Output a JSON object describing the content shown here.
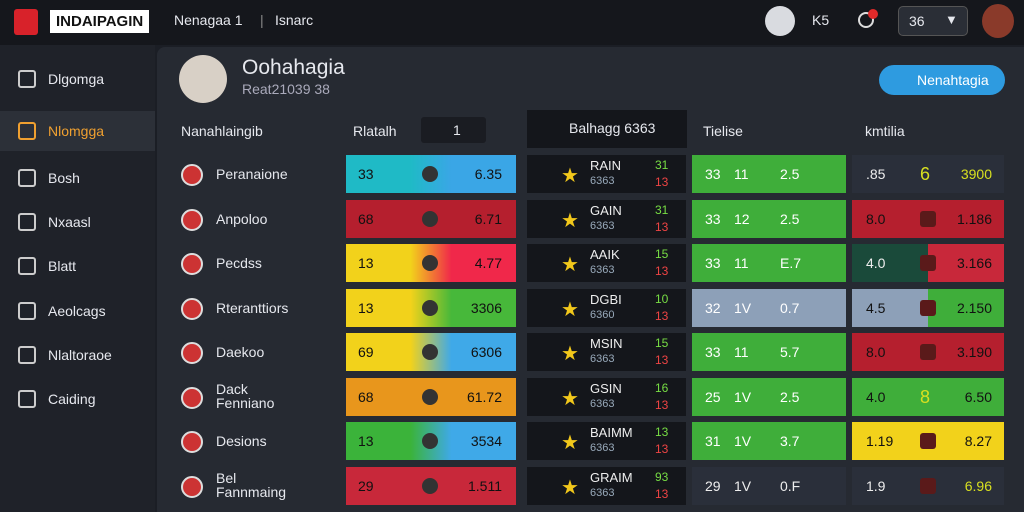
{
  "header": {
    "logo": "INDAIPAGIN",
    "nav": [
      "Nenagaa 1",
      "Isnarc"
    ],
    "stat": "K5",
    "badge": "36"
  },
  "sidebar": [
    "Dlgomga",
    "Nlomgga",
    "Bosh",
    "Nxaasl",
    "Blatt",
    "Aeolcags",
    "Nlaltoraoe",
    "Caiding"
  ],
  "profile": {
    "name": "Oohahagia",
    "subtitle": "Reat21039 38",
    "search": "Nenahtagia"
  },
  "table": {
    "headers": [
      "Nanahlaingib",
      "Rlatalh",
      "1",
      "Balhagg 6363",
      "Tielise",
      "kmtilia"
    ],
    "rows": [
      [
        "Peranaione",
        "33",
        "6.35",
        "RAIN",
        "6363",
        "31",
        "13",
        "33",
        "11",
        "2.5",
        ".85",
        "6",
        "3900"
      ],
      [
        "Anpoloo",
        "68",
        "6.71",
        "GAIN",
        "6363",
        "31",
        "13",
        "33",
        "12",
        "2.5",
        "8.0",
        "",
        "1.186"
      ],
      [
        "Pecdss",
        "13",
        "4.77",
        "AAIK",
        "6363",
        "15",
        "13",
        "33",
        "11",
        "E.7",
        "4.0",
        "",
        "3.166"
      ],
      [
        "Rteranttiors",
        "13",
        "3306",
        "DGBI",
        "6360",
        "10",
        "13",
        "32",
        "1V",
        "0.7",
        "4.5",
        "",
        "2.150"
      ],
      [
        "Daekoo",
        "69",
        "6306",
        "MSIN",
        "6363",
        "15",
        "13",
        "33",
        "11",
        "5.7",
        "8.0",
        "",
        "3.190"
      ],
      [
        "Dack Fenniano",
        "68",
        "61.72",
        "GSIN",
        "6363",
        "16",
        "13",
        "25",
        "1V",
        "2.5",
        "4.0",
        "8",
        "6.50"
      ],
      [
        "Desions",
        "13",
        "3534",
        "BAIMM",
        "6363",
        "13",
        "13",
        "31",
        "1V",
        "3.7",
        "1.19",
        "",
        "8.27"
      ],
      [
        "Bel Fannmaing",
        "29",
        "1.511",
        "GRAIM",
        "6363",
        "93",
        "13",
        "29",
        "1V",
        "0.F",
        "1.9",
        "",
        "6.96"
      ]
    ]
  }
}
